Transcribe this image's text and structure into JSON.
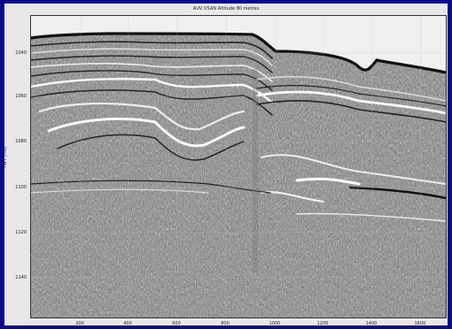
{
  "figure": {
    "title": "AUV USAN Altitude 80 metres",
    "ylabel": "TWT (ms)",
    "y_ticks": [
      "1040",
      "1060",
      "1080",
      "1100",
      "1120",
      "1140"
    ],
    "x_ticks": [
      "200",
      "400",
      "600",
      "800",
      "1000",
      "1200",
      "1400",
      "1600"
    ]
  },
  "colors": {
    "border": "#0a0a8c",
    "panel": "#e8e8e8",
    "seismic_mid": "#808080"
  }
}
